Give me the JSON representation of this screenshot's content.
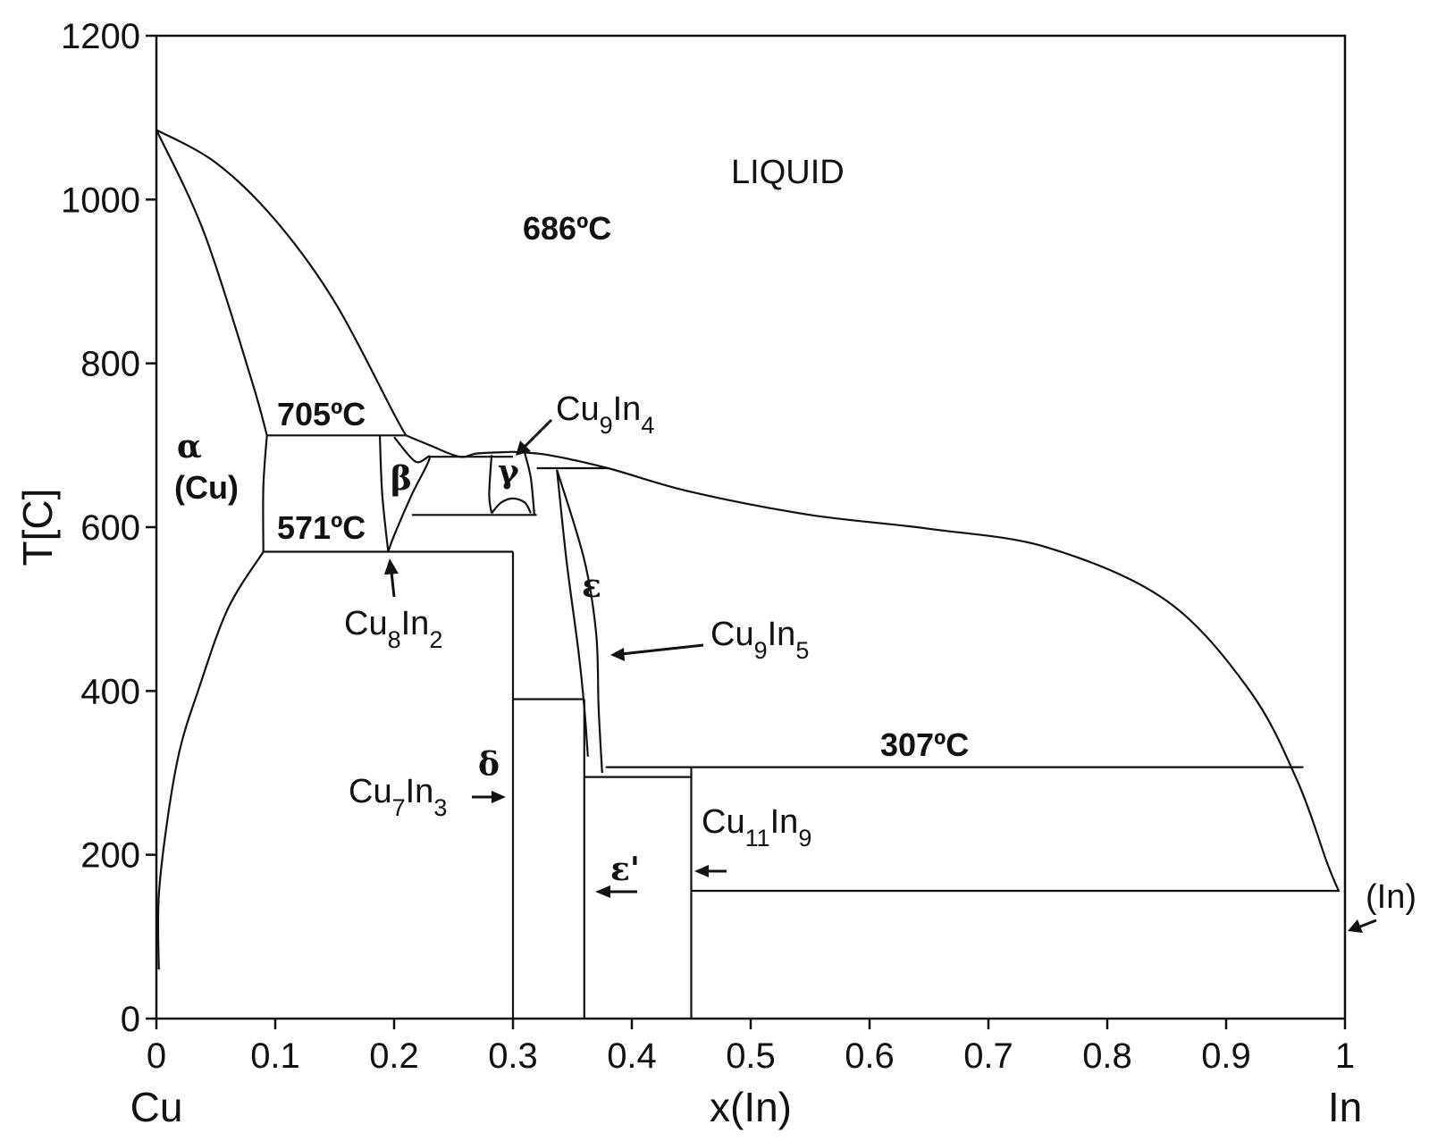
{
  "chart_data": {
    "type": "phase-diagram",
    "title": "",
    "xlabel": "x(In)",
    "ylabel": "T[C]",
    "xlim": [
      0,
      1
    ],
    "ylim": [
      0,
      1200
    ],
    "x_ticks": [
      "0",
      "0.1",
      "0.2",
      "0.3",
      "0.4",
      "0.5",
      "0.6",
      "0.7",
      "0.8",
      "0.9",
      "1"
    ],
    "y_ticks": [
      "0",
      "200",
      "400",
      "600",
      "800",
      "1000",
      "1200"
    ],
    "x_end_labels": {
      "left": "Cu",
      "right": "In"
    },
    "grid": false,
    "regions": {
      "liquid": "LIQUID",
      "alpha": "α",
      "alpha_cu": "(Cu)",
      "beta": "β",
      "gamma": "γ",
      "delta": "δ",
      "epsilon": "ε",
      "epsilon_prime": "ε'",
      "indium": "(In)"
    },
    "temperatures": {
      "t686": "686ºC",
      "t705": "705ºC",
      "t571": "571ºC",
      "t307": "307ºC"
    },
    "compounds": {
      "cu9in4": {
        "base": "Cu",
        "sub1": "9",
        "mid": "In",
        "sub2": "4"
      },
      "cu8in2": {
        "base": "Cu",
        "sub1": "8",
        "mid": "In",
        "sub2": "2"
      },
      "cu9in5": {
        "base": "Cu",
        "sub1": "9",
        "mid": "In",
        "sub2": "5"
      },
      "cu7in3": {
        "base": "Cu",
        "sub1": "7",
        "mid": "In",
        "sub2": "3"
      },
      "cu11in9": {
        "base": "Cu",
        "sub1": "11",
        "mid": "In",
        "sub2": "9"
      }
    },
    "phase_lines": [
      {
        "name": "liquidus-cu-side",
        "points": [
          [
            0,
            1085
          ],
          [
            0.05,
            1045
          ],
          [
            0.1,
            975
          ],
          [
            0.15,
            875
          ],
          [
            0.2,
            738
          ],
          [
            0.21,
            712
          ]
        ]
      },
      {
        "name": "solidus-cu",
        "points": [
          [
            0,
            1085
          ],
          [
            0.04,
            960
          ],
          [
            0.08,
            780
          ],
          [
            0.093,
            712
          ]
        ]
      },
      {
        "name": "alpha-solvus",
        "points": [
          [
            0.09,
            570
          ],
          [
            0.06,
            500
          ],
          [
            0.035,
            400
          ],
          [
            0.02,
            330
          ],
          [
            0.01,
            250
          ],
          [
            0.002,
            150
          ],
          [
            0.002,
            60
          ]
        ]
      },
      {
        "name": "alpha-right-boundary",
        "points": [
          [
            0.093,
            712
          ],
          [
            0.09,
            650
          ],
          [
            0.09,
            570
          ]
        ]
      },
      {
        "name": "iso-705",
        "points": [
          [
            0.093,
            712
          ],
          [
            0.21,
            712
          ]
        ]
      },
      {
        "name": "iso-571",
        "points": [
          [
            0.09,
            570
          ],
          [
            0.3,
            570
          ]
        ]
      },
      {
        "name": "beta-left",
        "points": [
          [
            0.188,
            712
          ],
          [
            0.19,
            640
          ],
          [
            0.195,
            570
          ]
        ]
      },
      {
        "name": "beta-right",
        "points": [
          [
            0.2,
            710
          ],
          [
            0.218,
            680
          ],
          [
            0.23,
            685
          ],
          [
            0.215,
            640
          ],
          [
            0.2,
            590
          ],
          [
            0.195,
            570
          ]
        ]
      },
      {
        "name": "liquidus-beta",
        "points": [
          [
            0.21,
            712
          ],
          [
            0.23,
            700
          ],
          [
            0.255,
            686
          ],
          [
            0.27,
            690
          ],
          [
            0.3,
            692
          ]
        ]
      },
      {
        "name": "iso-686",
        "points": [
          [
            0.23,
            686
          ],
          [
            0.3,
            686
          ]
        ]
      },
      {
        "name": "iso-615",
        "points": [
          [
            0.215,
            615
          ],
          [
            0.32,
            615
          ]
        ]
      },
      {
        "name": "gamma-left",
        "points": [
          [
            0.282,
            688
          ],
          [
            0.28,
            640
          ],
          [
            0.282,
            617
          ]
        ]
      },
      {
        "name": "gamma-right",
        "points": [
          [
            0.31,
            690
          ],
          [
            0.315,
            660
          ],
          [
            0.318,
            615
          ]
        ]
      },
      {
        "name": "gamma-dome",
        "points": [
          [
            0.282,
            617
          ],
          [
            0.29,
            630
          ],
          [
            0.3,
            635
          ],
          [
            0.31,
            630
          ],
          [
            0.315,
            617
          ]
        ]
      },
      {
        "name": "liquidus-in-side",
        "points": [
          [
            0.3,
            692
          ],
          [
            0.33,
            688
          ],
          [
            0.38,
            672
          ],
          [
            0.45,
            643
          ],
          [
            0.55,
            615
          ],
          [
            0.65,
            598
          ],
          [
            0.75,
            575
          ],
          [
            0.85,
            510
          ],
          [
            0.92,
            400
          ],
          [
            0.96,
            290
          ],
          [
            0.985,
            190
          ],
          [
            0.995,
            155
          ]
        ]
      },
      {
        "name": "iso-670",
        "points": [
          [
            0.32,
            672
          ],
          [
            0.38,
            672
          ]
        ]
      },
      {
        "name": "delta-left-boundary",
        "points": [
          [
            0.3,
            570
          ],
          [
            0.3,
            0
          ]
        ]
      },
      {
        "name": "iso-390",
        "points": [
          [
            0.3,
            390
          ],
          [
            0.36,
            390
          ]
        ]
      },
      {
        "name": "eps-left",
        "points": [
          [
            0.337,
            670
          ],
          [
            0.345,
            560
          ],
          [
            0.355,
            450
          ],
          [
            0.36,
            380
          ],
          [
            0.363,
            320
          ]
        ]
      },
      {
        "name": "eps-right",
        "points": [
          [
            0.337,
            670
          ],
          [
            0.36,
            560
          ],
          [
            0.37,
            470
          ],
          [
            0.372,
            380
          ],
          [
            0.375,
            300
          ]
        ]
      },
      {
        "name": "iso-307",
        "points": [
          [
            0.378,
            307
          ],
          [
            0.965,
            307
          ]
        ]
      },
      {
        "name": "iso-295",
        "points": [
          [
            0.36,
            295
          ],
          [
            0.45,
            295
          ]
        ]
      },
      {
        "name": "eps-prime-left",
        "points": [
          [
            0.36,
            390
          ],
          [
            0.36,
            0
          ]
        ]
      },
      {
        "name": "cu11in9-left",
        "points": [
          [
            0.45,
            307
          ],
          [
            0.45,
            0
          ]
        ]
      },
      {
        "name": "iso-156",
        "points": [
          [
            0.45,
            156
          ],
          [
            0.995,
            156
          ]
        ]
      }
    ]
  }
}
